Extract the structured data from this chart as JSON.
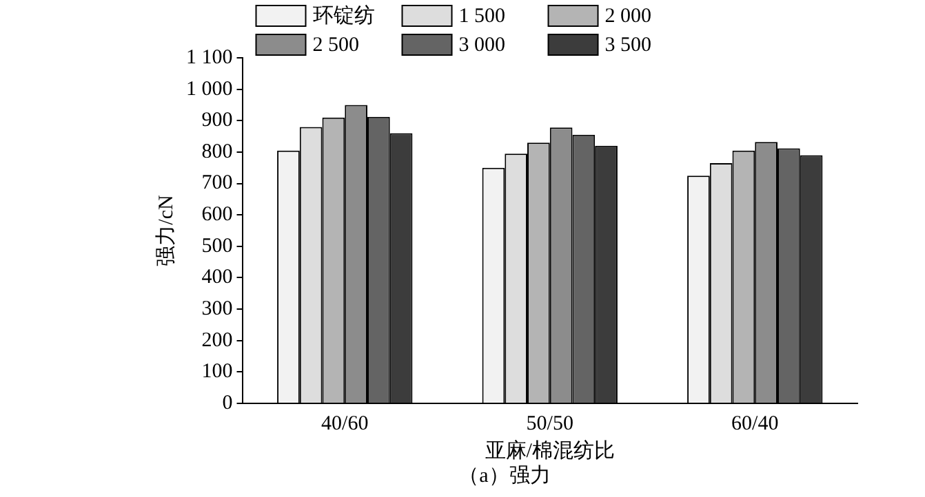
{
  "chart_data": {
    "type": "bar",
    "title": "（a）强力",
    "xlabel": "亚麻/棉混纺比",
    "ylabel": "强力/cN",
    "categories": [
      "40/60",
      "50/50",
      "60/40"
    ],
    "series": [
      {
        "name": "环锭纺",
        "color": "#f2f2f2",
        "values": [
          805,
          750,
          725
        ]
      },
      {
        "name": "1 500",
        "color": "#dddddd",
        "values": [
          880,
          795,
          765
        ]
      },
      {
        "name": "2 000",
        "color": "#b4b4b4",
        "values": [
          910,
          830,
          805
        ]
      },
      {
        "name": "2 500",
        "color": "#8c8c8c",
        "values": [
          950,
          878,
          832
        ]
      },
      {
        "name": "3 000",
        "color": "#646464",
        "values": [
          912,
          855,
          812
        ]
      },
      {
        "name": "3 500",
        "color": "#3c3c3c",
        "values": [
          860,
          820,
          790
        ]
      }
    ],
    "ylim": [
      0,
      1100
    ],
    "yticks": [
      0,
      100,
      200,
      300,
      400,
      500,
      600,
      700,
      800,
      900,
      {
        "value": 1000,
        "label": "1 000"
      },
      {
        "value": 1100,
        "label": "1 100"
      }
    ],
    "grid": false,
    "legend": "top"
  }
}
